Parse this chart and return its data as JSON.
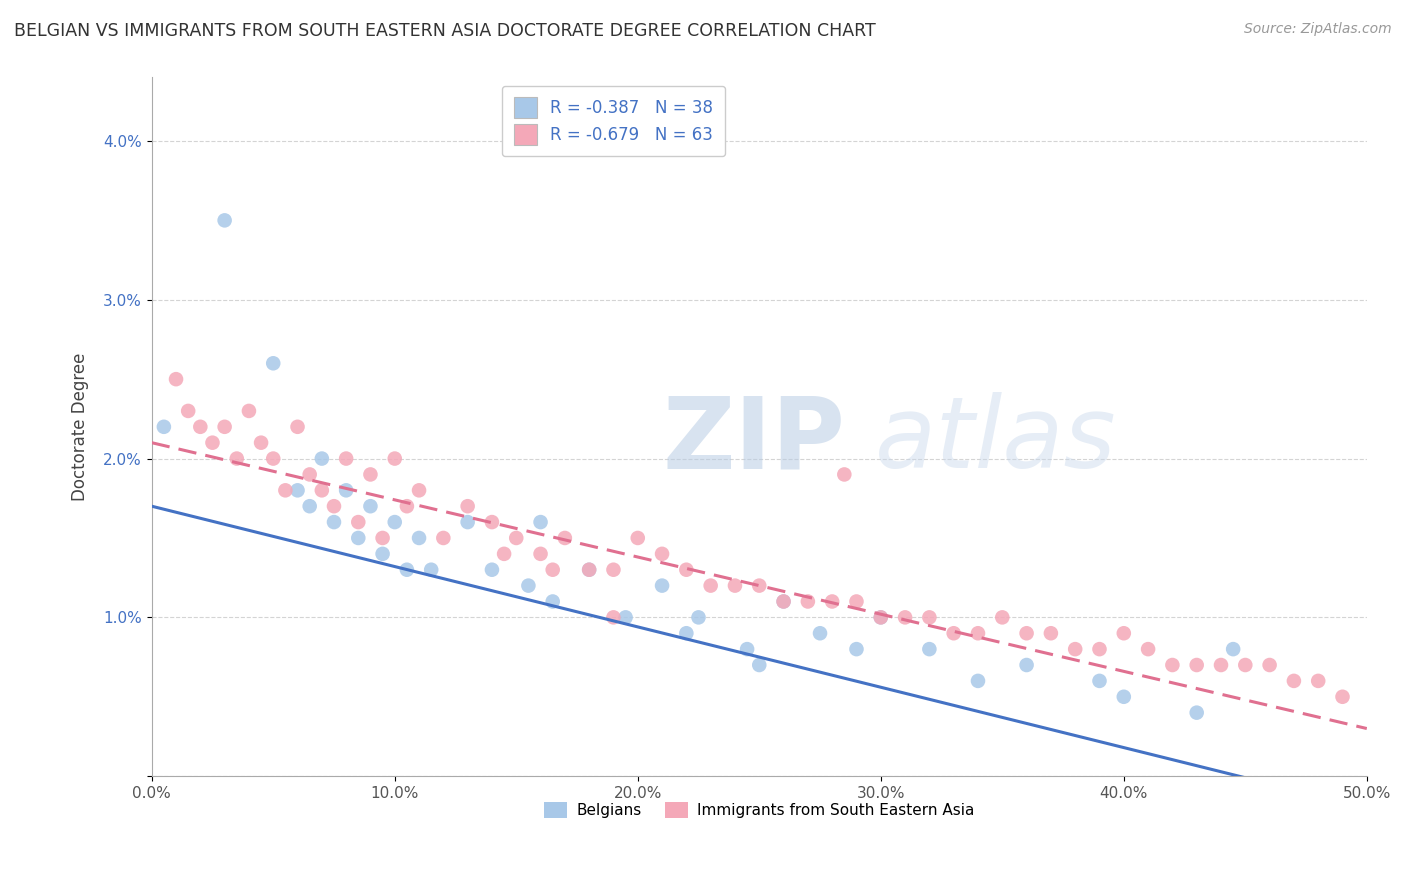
{
  "title": "BELGIAN VS IMMIGRANTS FROM SOUTH EASTERN ASIA DOCTORATE DEGREE CORRELATION CHART",
  "source": "Source: ZipAtlas.com",
  "ylabel": "Doctorate Degree",
  "legend_label_1": "Belgians",
  "legend_label_2": "Immigrants from South Eastern Asia",
  "R1": -0.387,
  "N1": 38,
  "R2": -0.679,
  "N2": 63,
  "xlim": [
    0.0,
    0.5
  ],
  "ylim": [
    0.0,
    0.044
  ],
  "xticks": [
    0.0,
    0.1,
    0.2,
    0.3,
    0.4,
    0.5
  ],
  "xtick_labels": [
    "0.0%",
    "10.0%",
    "20.0%",
    "30.0%",
    "40.0%",
    "50.0%"
  ],
  "yticks": [
    0.0,
    0.01,
    0.02,
    0.03,
    0.04
  ],
  "ytick_labels": [
    "",
    "1.0%",
    "2.0%",
    "3.0%",
    "4.0%"
  ],
  "color_blue": "#a8c8e8",
  "color_pink": "#f4a8b8",
  "line_color_blue": "#4472c4",
  "line_color_pink": "#e07090",
  "background_color": "#ffffff",
  "grid_color": "#d0d0d0",
  "text_color_blue": "#4472c4",
  "title_color": "#333333",
  "blue_line_start_y": 0.017,
  "blue_line_end_y": -0.002,
  "pink_line_start_y": 0.021,
  "pink_line_end_y": 0.003,
  "blue_x": [
    0.005,
    0.03,
    0.05,
    0.06,
    0.065,
    0.07,
    0.075,
    0.08,
    0.085,
    0.09,
    0.095,
    0.1,
    0.105,
    0.11,
    0.115,
    0.13,
    0.14,
    0.155,
    0.16,
    0.165,
    0.18,
    0.195,
    0.21,
    0.225,
    0.245,
    0.26,
    0.275,
    0.29,
    0.3,
    0.32,
    0.34,
    0.36,
    0.39,
    0.4,
    0.43,
    0.445,
    0.22,
    0.25
  ],
  "blue_y": [
    0.022,
    0.035,
    0.026,
    0.018,
    0.017,
    0.02,
    0.016,
    0.018,
    0.015,
    0.017,
    0.014,
    0.016,
    0.013,
    0.015,
    0.013,
    0.016,
    0.013,
    0.012,
    0.016,
    0.011,
    0.013,
    0.01,
    0.012,
    0.01,
    0.008,
    0.011,
    0.009,
    0.008,
    0.01,
    0.008,
    0.006,
    0.007,
    0.006,
    0.005,
    0.004,
    0.008,
    0.009,
    0.007
  ],
  "pink_x": [
    0.01,
    0.015,
    0.02,
    0.025,
    0.03,
    0.035,
    0.04,
    0.045,
    0.05,
    0.055,
    0.06,
    0.065,
    0.07,
    0.075,
    0.08,
    0.085,
    0.09,
    0.095,
    0.1,
    0.105,
    0.11,
    0.12,
    0.13,
    0.14,
    0.145,
    0.15,
    0.16,
    0.17,
    0.18,
    0.19,
    0.2,
    0.21,
    0.22,
    0.23,
    0.24,
    0.25,
    0.26,
    0.27,
    0.28,
    0.29,
    0.3,
    0.31,
    0.32,
    0.33,
    0.34,
    0.35,
    0.36,
    0.37,
    0.38,
    0.39,
    0.4,
    0.41,
    0.42,
    0.43,
    0.44,
    0.45,
    0.46,
    0.47,
    0.48,
    0.49,
    0.165,
    0.285,
    0.19
  ],
  "pink_y": [
    0.025,
    0.023,
    0.022,
    0.021,
    0.022,
    0.02,
    0.023,
    0.021,
    0.02,
    0.018,
    0.022,
    0.019,
    0.018,
    0.017,
    0.02,
    0.016,
    0.019,
    0.015,
    0.02,
    0.017,
    0.018,
    0.015,
    0.017,
    0.016,
    0.014,
    0.015,
    0.014,
    0.015,
    0.013,
    0.013,
    0.015,
    0.014,
    0.013,
    0.012,
    0.012,
    0.012,
    0.011,
    0.011,
    0.011,
    0.011,
    0.01,
    0.01,
    0.01,
    0.009,
    0.009,
    0.01,
    0.009,
    0.009,
    0.008,
    0.008,
    0.009,
    0.008,
    0.007,
    0.007,
    0.007,
    0.007,
    0.007,
    0.006,
    0.006,
    0.005,
    0.013,
    0.019,
    0.01
  ]
}
